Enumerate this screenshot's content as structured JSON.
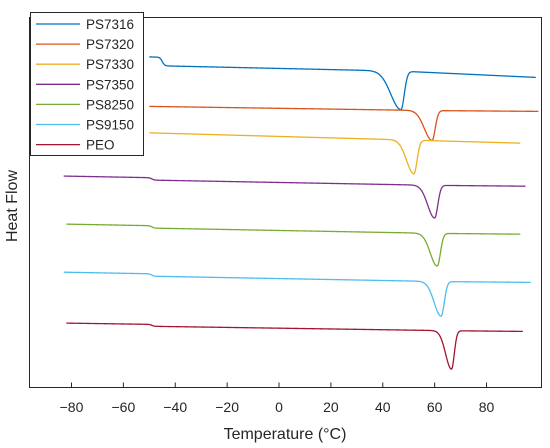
{
  "chart_data": {
    "type": "line",
    "xlabel": "Temperature (°C)",
    "ylabel": "Heat Flow",
    "xlim": [
      -96,
      101
    ],
    "xticks": [
      -80,
      -60,
      -40,
      -20,
      0,
      20,
      40,
      60,
      80
    ],
    "yticks": false,
    "grid": false,
    "legend_position": "top-left",
    "series": [
      {
        "name": "PS7316",
        "color": "#0072BD",
        "offset": 6.7,
        "x_start": -50,
        "x_end": 99,
        "step_at": -45,
        "step_height": 0.18,
        "pre_slope": -0.0012,
        "post_slope": -0.0025,
        "peak_x": 47,
        "peak_depth": 0.8,
        "peak_w_left": 5.5,
        "peak_w_right": 1.8
      },
      {
        "name": "PS7320",
        "color": "#D95319",
        "offset": 5.85,
        "x_start": -50,
        "x_end": 100,
        "step_at": -48,
        "step_height": 0.0,
        "pre_slope": -0.0008,
        "post_slope": -0.0004,
        "peak_x": 59,
        "peak_depth": 0.62,
        "peak_w_left": 4.2,
        "peak_w_right": 1.7
      },
      {
        "name": "PS7330",
        "color": "#EDB120",
        "offset": 5.3,
        "x_start": -50,
        "x_end": 93,
        "step_at": -48,
        "step_height": 0.0,
        "pre_slope": -0.0015,
        "post_slope": -0.0015,
        "peak_x": 52,
        "peak_depth": 0.7,
        "peak_w_left": 4.0,
        "peak_w_right": 1.7
      },
      {
        "name": "PS7350",
        "color": "#7E2F8E",
        "offset": 4.35,
        "x_start": -83,
        "x_end": 95,
        "step_at": -49,
        "step_height": 0.05,
        "pre_slope": -0.001,
        "post_slope": -0.0005,
        "peak_x": 60,
        "peak_depth": 0.68,
        "peak_w_left": 3.8,
        "peak_w_right": 1.7
      },
      {
        "name": "PS8250",
        "color": "#77AC30",
        "offset": 3.35,
        "x_start": -82,
        "x_end": 93,
        "step_at": -49,
        "step_height": 0.05,
        "pre_slope": -0.001,
        "post_slope": -0.0005,
        "peak_x": 61,
        "peak_depth": 0.68,
        "peak_w_left": 3.8,
        "peak_w_right": 1.7
      },
      {
        "name": "PS9150",
        "color": "#4DBEEE",
        "offset": 2.35,
        "x_start": -83,
        "x_end": 97,
        "step_at": -49,
        "step_height": 0.05,
        "pre_slope": -0.001,
        "post_slope": -0.0005,
        "peak_x": 62.5,
        "peak_depth": 0.72,
        "peak_w_left": 3.8,
        "peak_w_right": 1.7
      },
      {
        "name": "PEO",
        "color": "#A2142F",
        "offset": 1.3,
        "x_start": -82,
        "x_end": 94,
        "step_at": -49,
        "step_height": 0.04,
        "pre_slope": -0.0008,
        "post_slope": -0.0005,
        "peak_x": 66.5,
        "peak_depth": 0.8,
        "peak_w_left": 3.2,
        "peak_w_right": 1.5
      }
    ]
  }
}
